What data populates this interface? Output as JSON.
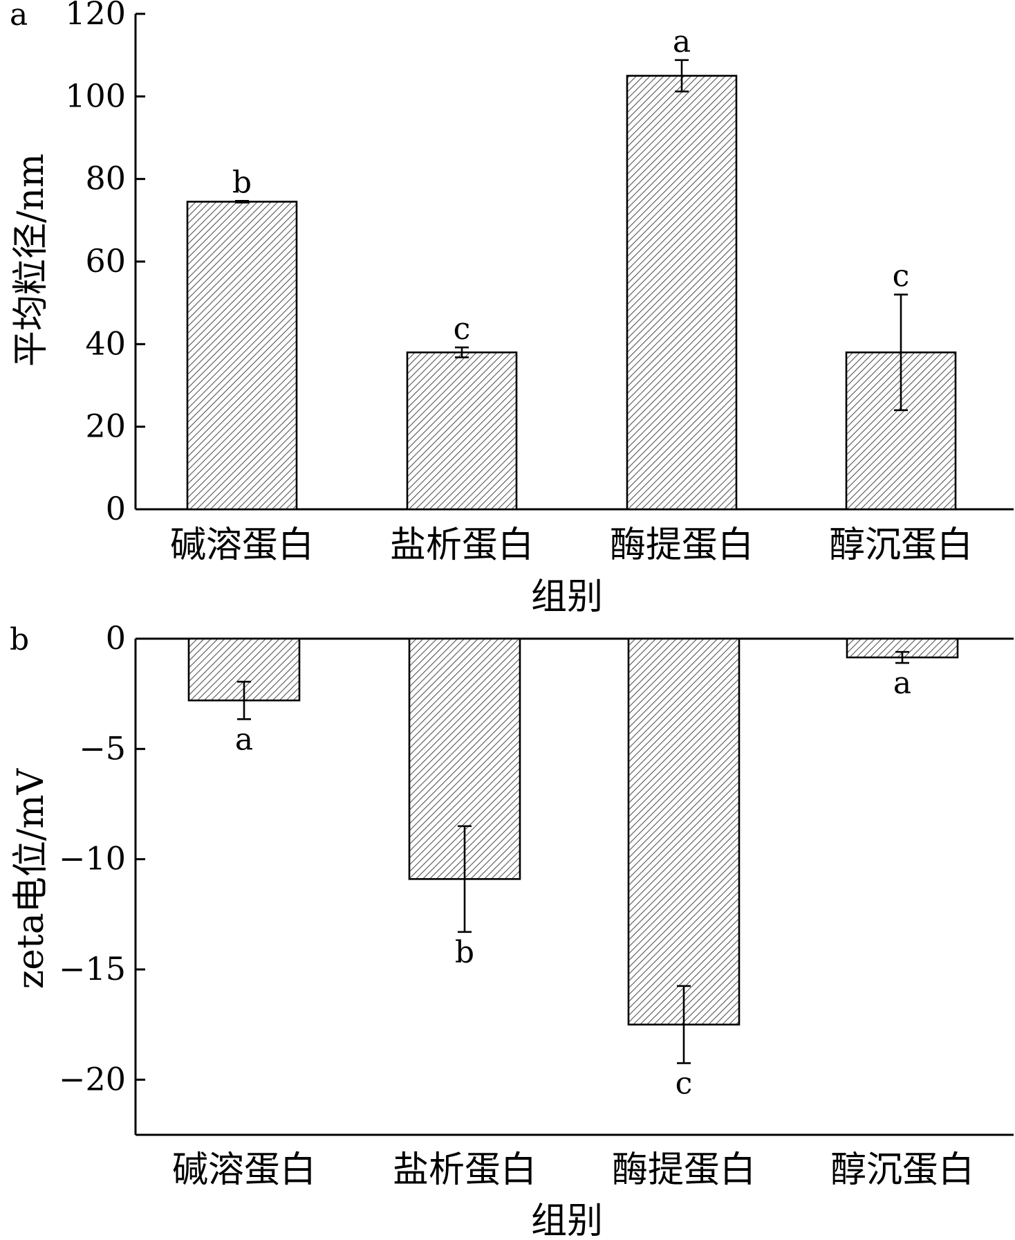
{
  "chart_data": [
    {
      "panel": "a",
      "type": "bar",
      "title": "",
      "xlabel": "组别",
      "ylabel": "平均粒径/nm",
      "categories": [
        "碱溶蛋白",
        "盐析蛋白",
        "酶提蛋白",
        "醇沉蛋白"
      ],
      "values": [
        74.5,
        38,
        105,
        38
      ],
      "errors": [
        0.2,
        1.2,
        3.8,
        14
      ],
      "significance": [
        "b",
        "c",
        "a",
        "c"
      ],
      "ylim": [
        0,
        120
      ],
      "yticks": [
        0,
        20,
        40,
        60,
        80,
        100,
        120
      ],
      "ytick_labels": [
        "0",
        "20",
        "40",
        "60",
        "80",
        "100",
        "120"
      ],
      "bar_fill": "hatched",
      "grid": false
    },
    {
      "panel": "b",
      "type": "bar",
      "title": "",
      "xlabel": "组别",
      "ylabel": "zeta电位/mV",
      "categories": [
        "碱溶蛋白",
        "盐析蛋白",
        "酶提蛋白",
        "醇沉蛋白"
      ],
      "values": [
        -2.8,
        -10.9,
        -17.5,
        -0.85
      ],
      "errors": [
        0.85,
        2.4,
        1.75,
        0.25
      ],
      "significance": [
        "a",
        "b",
        "c",
        "a"
      ],
      "ylim": [
        -22.5,
        0
      ],
      "yticks": [
        0,
        -5,
        -10,
        -15,
        -20
      ],
      "ytick_labels": [
        "0",
        "−5",
        "−10",
        "−15",
        "−20"
      ],
      "bar_fill": "hatched",
      "grid": false
    }
  ],
  "colors": {
    "axis": "#000000",
    "bar_fill": "#ffffff",
    "hatch": "#555555"
  }
}
